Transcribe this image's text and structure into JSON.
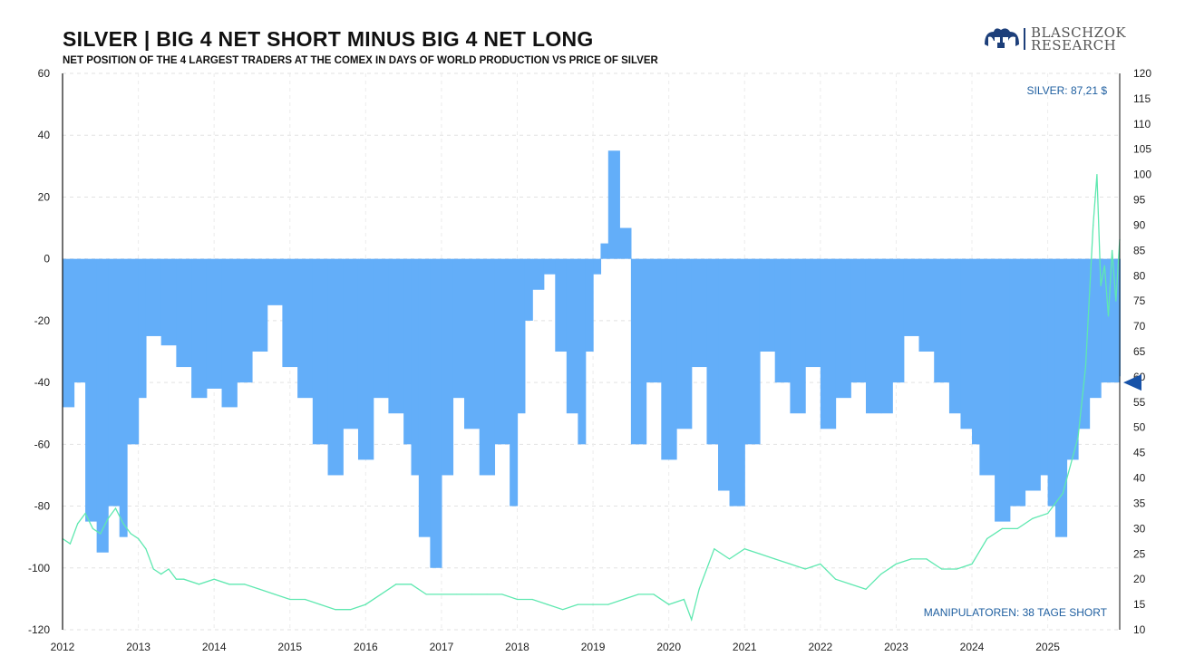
{
  "header": {
    "title": "SILVER | BIG 4 NET SHORT MINUS BIG 4 NET LONG",
    "subtitle": "NET POSITION OF THE 4 LARGEST TRADERS AT THE COMEX IN DAYS OF WORLD PRODUCTION VS PRICE OF SILVER",
    "logo_line1": "BLASCHZOK",
    "logo_line2": "RESEARCH"
  },
  "colors": {
    "bar": "#63aef9",
    "line": "#5fe8b0",
    "marker": "#1752a8",
    "annotation": "#1f5fa0"
  },
  "chart_data": {
    "type": "bar",
    "title": "SILVER | BIG 4 NET SHORT MINUS BIG 4 NET LONG",
    "subtitle": "NET POSITION OF THE 4 LARGEST TRADERS AT THE COMEX IN DAYS OF WORLD PRODUCTION VS PRICE OF SILVER",
    "xlim": [
      2012.0,
      2025.95
    ],
    "ylim": [
      -120,
      60
    ],
    "y2lim": [
      10,
      120
    ],
    "xticks": [
      "2012",
      "2013",
      "2014",
      "2015",
      "2016",
      "2017",
      "2018",
      "2019",
      "2020",
      "2021",
      "2022",
      "2023",
      "2024",
      "2025"
    ],
    "yticks": [
      "60",
      "40",
      "20",
      "0",
      "-20",
      "-40",
      "-60",
      "-80",
      "-100",
      "-120"
    ],
    "y2ticks": [
      "120",
      "115",
      "110",
      "105",
      "100",
      "95",
      "90",
      "85",
      "80",
      "75",
      "70",
      "65",
      "60",
      "55",
      "50",
      "45",
      "40",
      "35",
      "30",
      "25",
      "20",
      "15",
      "10"
    ],
    "grid": true,
    "annotations": {
      "silver_label": "SILVER: 87,21 $",
      "manipulators_label": "MANIPULATOREN: 38 TAGE SHORT",
      "marker_value": -40
    },
    "series": [
      {
        "axis": "left",
        "kind": "bar",
        "x": [
          2012.0,
          2012.15,
          2012.3,
          2012.45,
          2012.6,
          2012.75,
          2012.85,
          2013.0,
          2013.1,
          2013.3,
          2013.5,
          2013.7,
          2013.9,
          2014.1,
          2014.3,
          2014.5,
          2014.7,
          2014.9,
          2015.1,
          2015.3,
          2015.5,
          2015.7,
          2015.9,
          2016.1,
          2016.3,
          2016.5,
          2016.6,
          2016.7,
          2016.85,
          2017.0,
          2017.15,
          2017.3,
          2017.5,
          2017.7,
          2017.9,
          2018.0,
          2018.1,
          2018.2,
          2018.35,
          2018.5,
          2018.65,
          2018.8,
          2018.9,
          2019.0,
          2019.1,
          2019.2,
          2019.35,
          2019.5,
          2019.7,
          2019.9,
          2020.1,
          2020.3,
          2020.5,
          2020.65,
          2020.8,
          2021.0,
          2021.2,
          2021.4,
          2021.6,
          2021.8,
          2022.0,
          2022.2,
          2022.4,
          2022.6,
          2022.8,
          2022.95,
          2023.1,
          2023.3,
          2023.5,
          2023.7,
          2023.85,
          2024.0,
          2024.1,
          2024.3,
          2024.5,
          2024.7,
          2024.9,
          2025.0,
          2025.1,
          2025.25,
          2025.4,
          2025.55,
          2025.7,
          2025.85,
          2025.95
        ],
        "values": [
          -48,
          -40,
          -85,
          -95,
          -80,
          -90,
          -60,
          -45,
          -25,
          -28,
          -35,
          -45,
          -42,
          -48,
          -40,
          -30,
          -15,
          -35,
          -45,
          -60,
          -70,
          -55,
          -65,
          -45,
          -50,
          -60,
          -70,
          -90,
          -100,
          -70,
          -45,
          -55,
          -70,
          -60,
          -80,
          -50,
          -20,
          -10,
          -5,
          -30,
          -50,
          -60,
          -30,
          -5,
          5,
          35,
          10,
          -60,
          -40,
          -65,
          -55,
          -35,
          -60,
          -75,
          -80,
          -60,
          -30,
          -40,
          -50,
          -35,
          -55,
          -45,
          -40,
          -50,
          -50,
          -40,
          -25,
          -30,
          -40,
          -50,
          -55,
          -60,
          -70,
          -85,
          -80,
          -75,
          -70,
          -80,
          -90,
          -65,
          -55,
          -45,
          -40,
          -40,
          -38
        ]
      },
      {
        "axis": "right",
        "kind": "line",
        "name": "SILVER",
        "x": [
          2012.0,
          2012.1,
          2012.2,
          2012.3,
          2012.4,
          2012.5,
          2012.6,
          2012.7,
          2012.8,
          2012.9,
          2013.0,
          2013.1,
          2013.2,
          2013.3,
          2013.4,
          2013.5,
          2013.6,
          2013.8,
          2014.0,
          2014.2,
          2014.4,
          2014.6,
          2014.8,
          2015.0,
          2015.2,
          2015.4,
          2015.6,
          2015.8,
          2016.0,
          2016.2,
          2016.4,
          2016.6,
          2016.8,
          2017.0,
          2017.2,
          2017.4,
          2017.6,
          2017.8,
          2018.0,
          2018.2,
          2018.4,
          2018.6,
          2018.8,
          2019.0,
          2019.2,
          2019.4,
          2019.6,
          2019.8,
          2020.0,
          2020.2,
          2020.3,
          2020.4,
          2020.6,
          2020.8,
          2021.0,
          2021.2,
          2021.4,
          2021.6,
          2021.8,
          2022.0,
          2022.2,
          2022.4,
          2022.6,
          2022.8,
          2023.0,
          2023.2,
          2023.4,
          2023.6,
          2023.8,
          2024.0,
          2024.2,
          2024.4,
          2024.6,
          2024.8,
          2025.0,
          2025.2,
          2025.4,
          2025.5,
          2025.6,
          2025.65,
          2025.7,
          2025.75,
          2025.8,
          2025.85,
          2025.9,
          2025.95
        ],
        "values": [
          28,
          27,
          31,
          33,
          30,
          29,
          32,
          34,
          31,
          29,
          28,
          26,
          22,
          21,
          22,
          20,
          20,
          19,
          20,
          19,
          19,
          18,
          17,
          16,
          16,
          15,
          14,
          14,
          15,
          17,
          19,
          19,
          17,
          17,
          17,
          17,
          17,
          17,
          16,
          16,
          15,
          14,
          15,
          15,
          15,
          16,
          17,
          17,
          15,
          16,
          12,
          18,
          26,
          24,
          26,
          25,
          24,
          23,
          22,
          23,
          20,
          19,
          18,
          21,
          23,
          24,
          24,
          22,
          22,
          23,
          28,
          30,
          30,
          32,
          33,
          37,
          48,
          62,
          90,
          100,
          78,
          82,
          72,
          85,
          75,
          87.21
        ]
      }
    ]
  }
}
